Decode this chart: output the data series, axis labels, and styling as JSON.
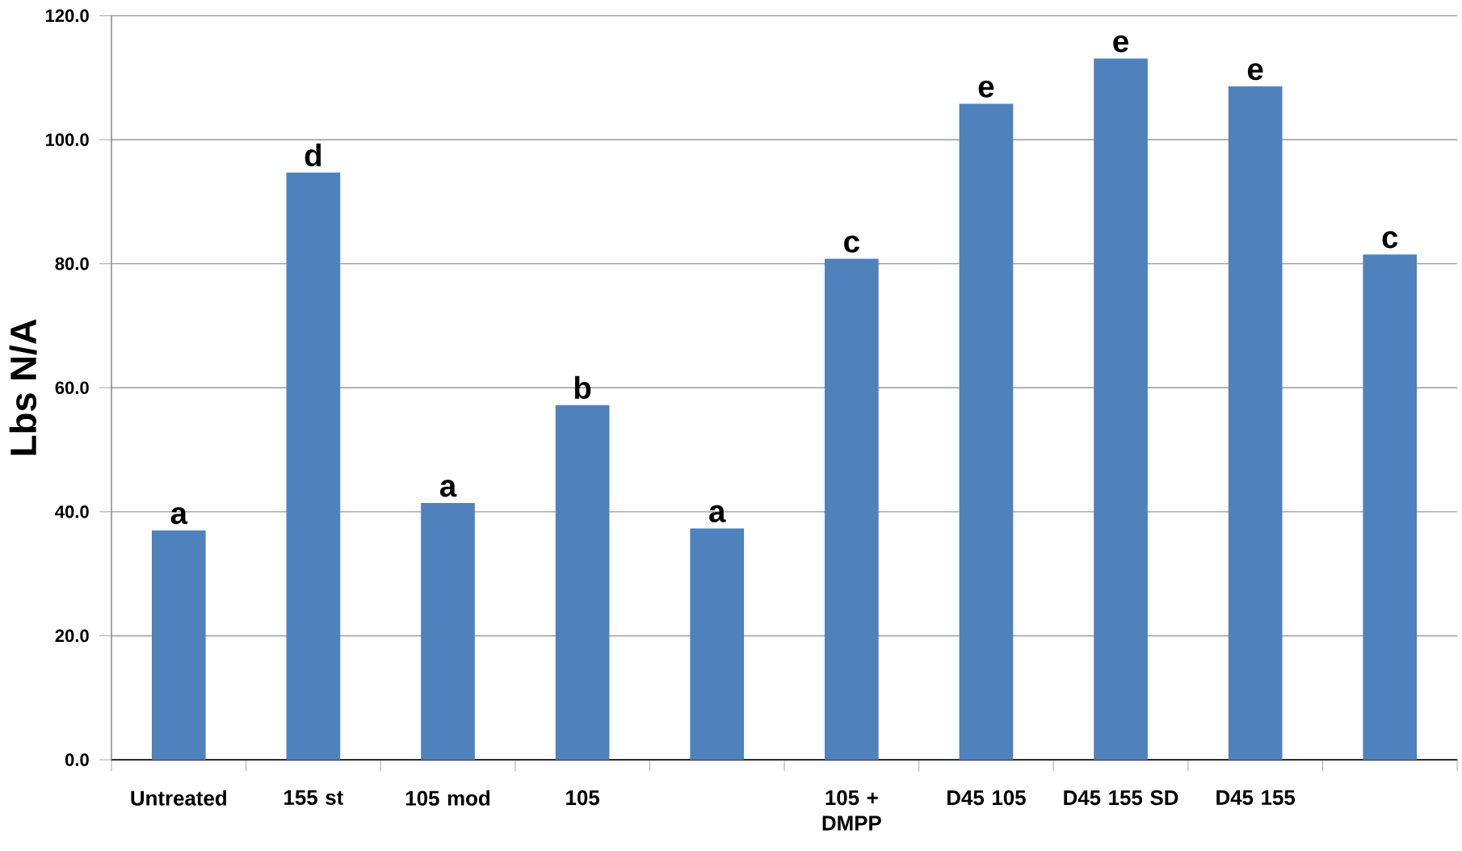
{
  "chart_data": {
    "type": "bar",
    "ylabel": "Lbs N/A",
    "categories": [
      "Untreated",
      "155 st",
      "105 mod",
      "105",
      null,
      "105 + DMPP",
      "D45 105",
      "D45 155 SD",
      "D45 155",
      null
    ],
    "values": [
      37.0,
      94.7,
      41.4,
      57.2,
      37.3,
      80.8,
      105.8,
      113.1,
      108.6,
      81.5
    ],
    "value_labels": [
      "a",
      "d",
      "a",
      "b",
      "a",
      "c",
      "e",
      "e",
      "e",
      "c"
    ],
    "color": "#4f81bd",
    "ylim": [
      0,
      120
    ],
    "yticks": [
      {
        "value": 0,
        "label": "0.0"
      },
      {
        "value": 20,
        "label": "20.0"
      },
      {
        "value": 40,
        "label": "40.0"
      },
      {
        "value": 60,
        "label": "60.0"
      },
      {
        "value": 80,
        "label": "80.0"
      },
      {
        "value": 100,
        "label": "100.0"
      },
      {
        "value": 120,
        "label": "120.0"
      }
    ],
    "grid": "y"
  }
}
